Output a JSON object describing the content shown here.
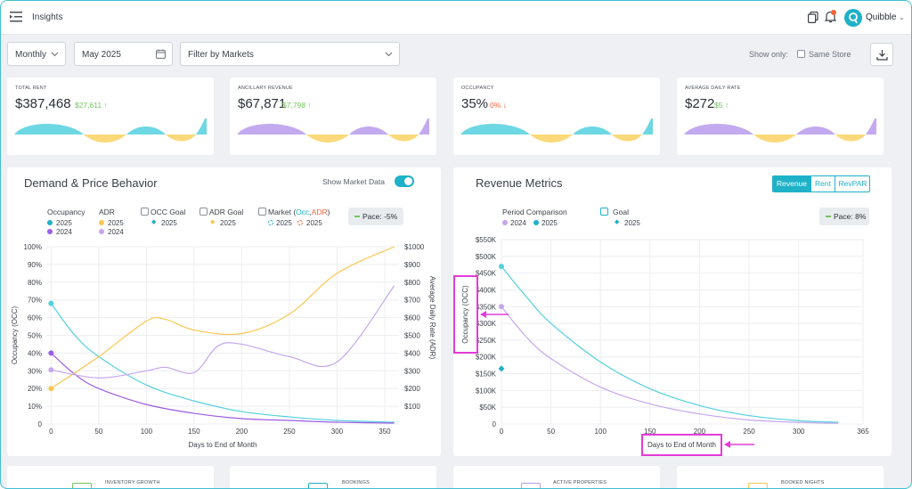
{
  "header": {
    "page_name": "Insights",
    "brand": "Quibble"
  },
  "filters": {
    "period": "Monthly",
    "month": "May 2025",
    "markets_placeholder": "Filter by Markets",
    "show_only": "Show only:",
    "same_store": "Same Store"
  },
  "kpis": [
    {
      "label": "TOTAL RENT",
      "value": "$387,468",
      "change": "$27,611 ↑",
      "change_color": "#72c75c",
      "wave_color": "#53d0de"
    },
    {
      "label": "ANCILLARY REVENUE",
      "value": "$67,871",
      "change": "$7,798 ↑",
      "change_color": "#72c75c",
      "wave_color": "#b99bec"
    },
    {
      "label": "OCCUPANCY",
      "value": "35%",
      "change": "0% ↓",
      "change_color": "#f0633a",
      "wave_color": "#53d0de"
    },
    {
      "label": "AVERAGE DAILY RATE",
      "value": "$272",
      "change": "$5 ↑",
      "change_color": "#72c75c",
      "wave_color": "#b99bec"
    }
  ],
  "demand_panel": {
    "title": "Demand & Price Behavior",
    "show_market_data": "Show Market Data",
    "legend": {
      "occupancy": "Occupancy",
      "adr": "ADR",
      "occ_goal": "OCC Goal",
      "adr_goal": "ADR Goal",
      "market": "Market (",
      "market_occ": "Occ",
      "market_sep": ",",
      "market_adr": "ADR",
      "market_close": ")",
      "y2025": "2025",
      "y2024": "2024"
    },
    "pace": "Pace: -5%"
  },
  "revenue_panel": {
    "title": "Revenue Metrics",
    "tabs": [
      "Revenue",
      "Rent",
      "RevPAR"
    ],
    "legend": {
      "period_comparison": "Period Comparison",
      "goal": "Goal",
      "y2024": "2024",
      "y2025": "2025"
    },
    "pace": "Pace: 8%"
  },
  "bottom_cards": [
    "INVENTORY GROWTH",
    "BOOKINGS",
    "ACTIVE PROPERTIES",
    "BOOKED NIGHTS"
  ],
  "chart_data": [
    {
      "type": "line",
      "xlabel": "Days to End of Month",
      "ylabel": "Occupancy (OCC)",
      "y2label": "Average Daily Rate (ADR)",
      "x_ticks": [
        0,
        50,
        100,
        150,
        200,
        250,
        300,
        350
      ],
      "y_ticks": [
        "0",
        "10%",
        "20%",
        "30%",
        "40%",
        "50%",
        "60%",
        "70%",
        "80%",
        "90%",
        "100%"
      ],
      "y2_ticks": [
        "$100",
        "$200",
        "$300",
        "$400",
        "$500",
        "$600",
        "$700",
        "$800",
        "$900",
        "$1000"
      ],
      "ylim": [
        0,
        100
      ],
      "y2lim": [
        0,
        1000
      ],
      "series": [
        {
          "name": "Occupancy 2025",
          "color": "#53d0de",
          "axis": "left",
          "x": [
            0,
            25,
            50,
            100,
            150,
            200,
            250,
            300,
            360
          ],
          "y": [
            68,
            50,
            38,
            22,
            13,
            7,
            4,
            2,
            1
          ]
        },
        {
          "name": "Occupancy 2024",
          "color": "#9b5de5",
          "axis": "left",
          "x": [
            0,
            25,
            50,
            100,
            150,
            200,
            250,
            300,
            360
          ],
          "y": [
            40,
            28,
            20,
            11,
            6,
            3,
            2,
            1,
            0.5
          ]
        },
        {
          "name": "ADR 2025",
          "color": "#f9c74f",
          "axis": "right",
          "x": [
            0,
            50,
            100,
            120,
            150,
            200,
            250,
            300,
            360
          ],
          "y": [
            200,
            380,
            580,
            590,
            530,
            510,
            620,
            850,
            1000
          ]
        },
        {
          "name": "ADR 2024",
          "color": "#c7a6ef",
          "axis": "right",
          "x": [
            0,
            50,
            100,
            120,
            150,
            175,
            200,
            250,
            300,
            360
          ],
          "y": [
            305,
            260,
            300,
            320,
            290,
            440,
            450,
            380,
            350,
            780
          ]
        }
      ]
    },
    {
      "type": "line",
      "xlabel": "Days to End of Month",
      "ylabel": "Occupancy (OCC)",
      "x_ticks": [
        0,
        50,
        100,
        150,
        200,
        250,
        300,
        365
      ],
      "y_ticks": [
        "0",
        "$50K",
        "$100K",
        "$150K",
        "$200K",
        "$250K",
        "$300K",
        "$350K",
        "$400K",
        "$450K",
        "$500K",
        "$550K"
      ],
      "ylim": [
        0,
        550000
      ],
      "series": [
        {
          "name": "2025",
          "color": "#53d0de",
          "x": [
            0,
            25,
            50,
            100,
            150,
            200,
            250,
            300,
            340
          ],
          "y": [
            470000,
            380000,
            300000,
            185000,
            105000,
            55000,
            25000,
            10000,
            5000
          ]
        },
        {
          "name": "2024",
          "color": "#c7a6ef",
          "x": [
            0,
            25,
            50,
            100,
            150,
            200,
            250,
            300,
            340
          ],
          "y": [
            350000,
            260000,
            195000,
            110000,
            60000,
            30000,
            12000,
            5000,
            2000
          ]
        }
      ],
      "goal": {
        "name": "Goal 2025",
        "x": 0,
        "y": 165000
      }
    }
  ]
}
